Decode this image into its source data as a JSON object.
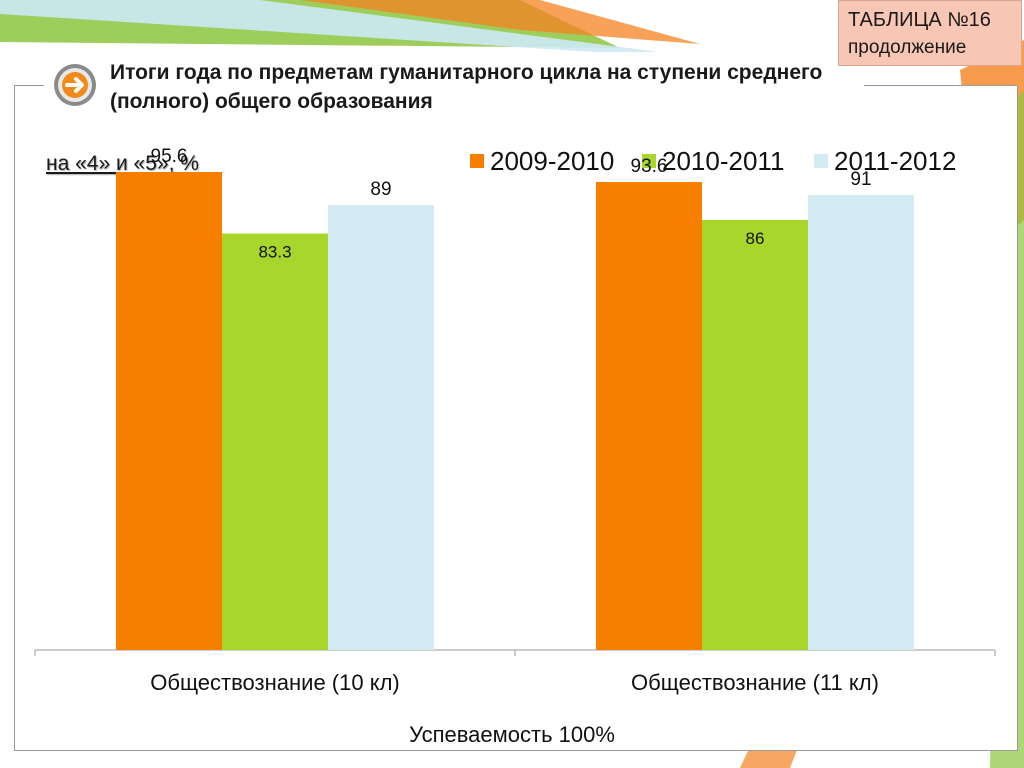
{
  "header": {
    "title": "Итоги года по предметам гуманитарного цикла на ступени среднего (полного) общего образования",
    "table_tag_line1": "ТАБЛИЦА №16",
    "table_tag_line2": "продолжение",
    "nav_icon": "arrow-right-icon"
  },
  "unit_label": "на «4» и «5», %",
  "footer_note": "Успеваемость 100%",
  "colors": {
    "series_2009": "#f77f00",
    "series_2010": "#a8d62c",
    "series_2011": "#d3ecf3",
    "decor_orange": "#f58220",
    "decor_green": "#8cc63f",
    "decor_blue": "#cde9f4"
  },
  "chart_data": {
    "type": "bar",
    "categories": [
      "Обществознание (10 кл)",
      "Обществознание (11 кл)"
    ],
    "series": [
      {
        "name": "2009-2010",
        "values": [
          95.6,
          93.6
        ],
        "labels": [
          "95.6",
          "93.6"
        ]
      },
      {
        "name": "2010-2011",
        "values": [
          83.3,
          86
        ],
        "labels": [
          "83.3",
          "86"
        ]
      },
      {
        "name": "2011-2012",
        "values": [
          89,
          91
        ],
        "labels": [
          "89",
          "91"
        ]
      }
    ],
    "ylim": [
      0,
      100
    ],
    "grid": false,
    "legend_position": "top-right",
    "data_labels": true
  }
}
